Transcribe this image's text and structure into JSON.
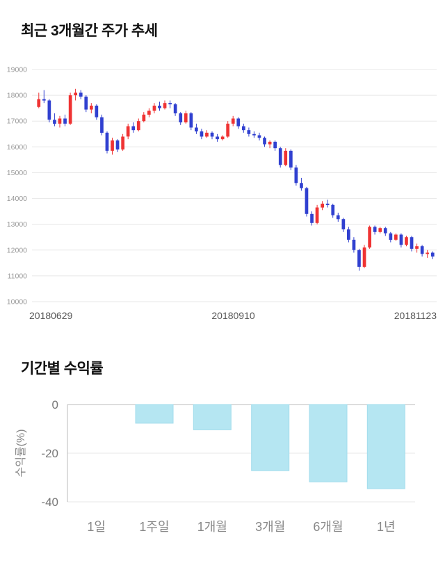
{
  "price_section": {
    "title": "최근 3개월간 주가 추세"
  },
  "returns_section": {
    "title": "기간별 수익률"
  },
  "chart_data": [
    {
      "type": "candlestick",
      "title": "최근 3개월간 주가 추세",
      "ylim": [
        10000,
        19000
      ],
      "y_tick_step": 1000,
      "y_ticks": [
        10000,
        11000,
        12000,
        13000,
        14000,
        15000,
        16000,
        17000,
        18000,
        19000
      ],
      "x_labels": [
        "20180629",
        "20180910",
        "20181123"
      ],
      "grid": true,
      "up_color": "#ef3333",
      "down_color": "#3040d0",
      "grid_color": "#e7e7e7",
      "tick_color": "#999999",
      "candles_ohlc": [
        [
          17550,
          18100,
          17500,
          17850
        ],
        [
          17850,
          18200,
          17700,
          17800
        ],
        [
          17800,
          17850,
          16950,
          17050
        ],
        [
          17050,
          17300,
          16800,
          16900
        ],
        [
          16900,
          17200,
          16750,
          17100
        ],
        [
          17100,
          17250,
          16800,
          16900
        ],
        [
          16900,
          18100,
          16850,
          18000
        ],
        [
          18000,
          18250,
          17800,
          18100
        ],
        [
          18100,
          18200,
          17850,
          17950
        ],
        [
          17950,
          18000,
          17350,
          17450
        ],
        [
          17450,
          17700,
          17300,
          17600
        ],
        [
          17600,
          17650,
          17050,
          17150
        ],
        [
          17150,
          17250,
          16450,
          16550
        ],
        [
          16550,
          16600,
          15750,
          15850
        ],
        [
          15850,
          16350,
          15700,
          16250
        ],
        [
          16250,
          16300,
          15800,
          15900
        ],
        [
          15900,
          16500,
          15850,
          16400
        ],
        [
          16400,
          16900,
          16300,
          16800
        ],
        [
          16800,
          16950,
          16550,
          16650
        ],
        [
          16650,
          17100,
          16600,
          17000
        ],
        [
          17000,
          17350,
          16950,
          17250
        ],
        [
          17250,
          17500,
          17150,
          17400
        ],
        [
          17400,
          17700,
          17300,
          17600
        ],
        [
          17600,
          17750,
          17400,
          17500
        ],
        [
          17500,
          17800,
          17450,
          17700
        ],
        [
          17700,
          17800,
          17500,
          17650
        ],
        [
          17650,
          17700,
          17200,
          17300
        ],
        [
          17300,
          17350,
          16850,
          16950
        ],
        [
          16950,
          17400,
          16900,
          17300
        ],
        [
          17300,
          17350,
          16650,
          16750
        ],
        [
          16750,
          16900,
          16500,
          16600
        ],
        [
          16600,
          16700,
          16300,
          16400
        ],
        [
          16400,
          16650,
          16350,
          16550
        ],
        [
          16550,
          16600,
          16300,
          16400
        ],
        [
          16400,
          16500,
          16200,
          16300
        ],
        [
          16300,
          16450,
          16250,
          16400
        ],
        [
          16400,
          17000,
          16350,
          16900
        ],
        [
          16900,
          17200,
          16800,
          17100
        ],
        [
          17100,
          17150,
          16700,
          16800
        ],
        [
          16800,
          16900,
          16550,
          16650
        ],
        [
          16650,
          16750,
          16400,
          16500
        ],
        [
          16500,
          16600,
          16350,
          16450
        ],
        [
          16450,
          16550,
          16250,
          16350
        ],
        [
          16350,
          16400,
          16000,
          16100
        ],
        [
          16100,
          16250,
          15950,
          16200
        ],
        [
          16200,
          16250,
          15850,
          15950
        ],
        [
          15950,
          16000,
          15200,
          15300
        ],
        [
          15300,
          15950,
          15250,
          15850
        ],
        [
          15850,
          15900,
          15100,
          15200
        ],
        [
          15200,
          15300,
          14500,
          14600
        ],
        [
          14600,
          14800,
          14300,
          14400
        ],
        [
          14400,
          14450,
          13300,
          13400
        ],
        [
          13400,
          13500,
          12950,
          13050
        ],
        [
          13050,
          13750,
          13000,
          13650
        ],
        [
          13650,
          13900,
          13550,
          13800
        ],
        [
          13800,
          13950,
          13650,
          13750
        ],
        [
          13750,
          13800,
          13250,
          13350
        ],
        [
          13350,
          13450,
          13100,
          13200
        ],
        [
          13200,
          13250,
          12700,
          12800
        ],
        [
          12800,
          12900,
          12300,
          12400
        ],
        [
          12400,
          12500,
          11900,
          12000
        ],
        [
          12000,
          12050,
          11200,
          11350
        ],
        [
          11350,
          12200,
          11300,
          12100
        ],
        [
          12100,
          12950,
          12050,
          12900
        ],
        [
          12900,
          12950,
          12600,
          12700
        ],
        [
          12700,
          12900,
          12650,
          12850
        ],
        [
          12850,
          12900,
          12550,
          12650
        ],
        [
          12650,
          12700,
          12300,
          12400
        ],
        [
          12400,
          12650,
          12350,
          12600
        ],
        [
          12600,
          12650,
          12100,
          12200
        ],
        [
          12200,
          12550,
          12150,
          12500
        ],
        [
          12500,
          12550,
          11950,
          12050
        ],
        [
          12050,
          12250,
          11900,
          12150
        ],
        [
          12150,
          12200,
          11750,
          11850
        ],
        [
          11850,
          12000,
          11700,
          11900
        ],
        [
          11900,
          11950,
          11650,
          11750
        ]
      ]
    },
    {
      "type": "bar",
      "title": "기간별 수익률",
      "ylabel": "수익률(%)",
      "categories": [
        "1일",
        "1주일",
        "1개월",
        "3개월",
        "6개월",
        "1년"
      ],
      "values": [
        0,
        -7.7,
        -10.4,
        -27.2,
        -31.8,
        -34.6
      ],
      "ylim": [
        -40,
        0
      ],
      "y_ticks": [
        0,
        -20,
        -40
      ],
      "grid": true,
      "bar_color": "#b5e6f2",
      "bar_border": "#a2dcec",
      "axis_color": "#bbbbbb",
      "grid_color": "#e7e7e7",
      "tick_color": "#777777",
      "legend_position": "none"
    }
  ]
}
